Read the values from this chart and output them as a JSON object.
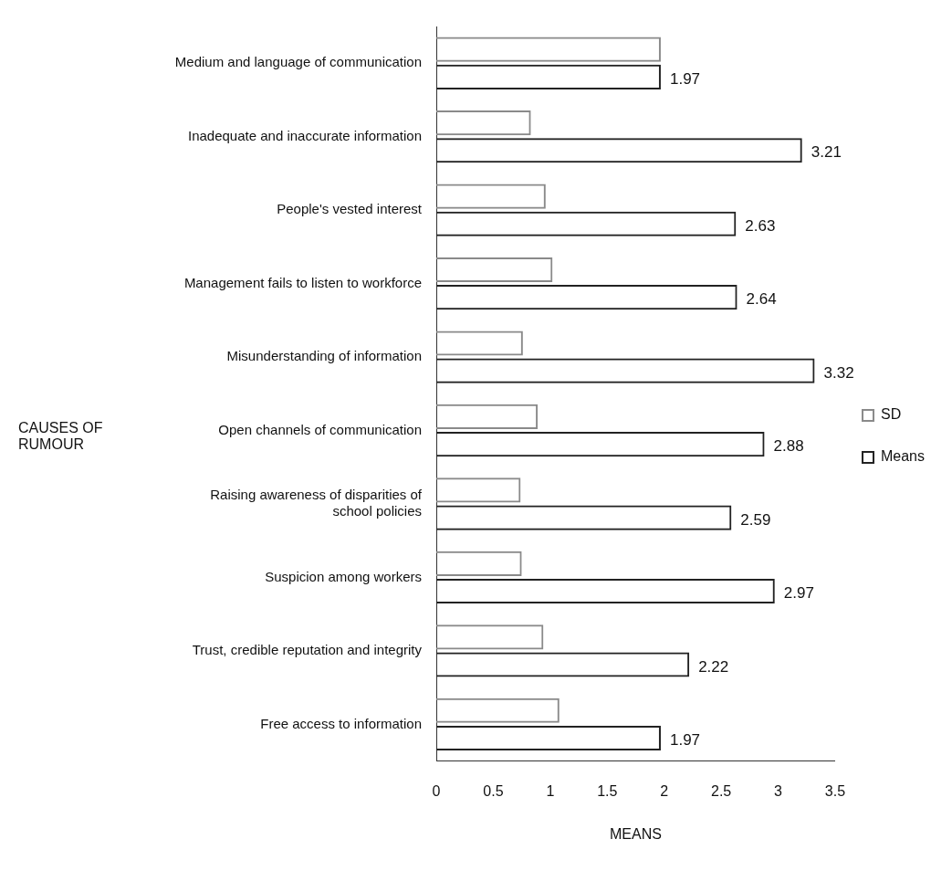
{
  "chart_data": {
    "type": "bar",
    "orientation": "horizontal",
    "xlabel": "MEANS",
    "ylabel": "CAUSES OF RUMOUR",
    "categories": [
      "Medium and language of communication",
      "Inadequate and inaccurate information",
      "People's vested interest",
      "Management fails to listen to workforce",
      "Misunderstanding of information",
      "Open channels of communication",
      "Raising awareness of disparities of school policies",
      "Suspicion among workers",
      "Trust, credible reputation and integrity",
      "Free access to information"
    ],
    "series": [
      {
        "name": "SD",
        "color": "#8a8a8a",
        "values": [
          1.97,
          0.83,
          0.96,
          1.02,
          0.76,
          0.89,
          0.74,
          0.75,
          0.94,
          1.08
        ]
      },
      {
        "name": "Means",
        "color": "#222222",
        "values": [
          1.97,
          3.21,
          2.63,
          2.64,
          3.32,
          2.88,
          2.59,
          2.97,
          2.22,
          1.97
        ],
        "value_labels": [
          "1.97",
          "3.21",
          "2.63",
          "2.64",
          "3.32",
          "2.88",
          "2.59",
          "2.97",
          "2.22",
          "1.97"
        ]
      }
    ],
    "xlim": [
      0,
      3.5
    ],
    "xticks": [
      0,
      0.5,
      1,
      1.5,
      2,
      2.5,
      3,
      3.5
    ],
    "legend": "right"
  }
}
